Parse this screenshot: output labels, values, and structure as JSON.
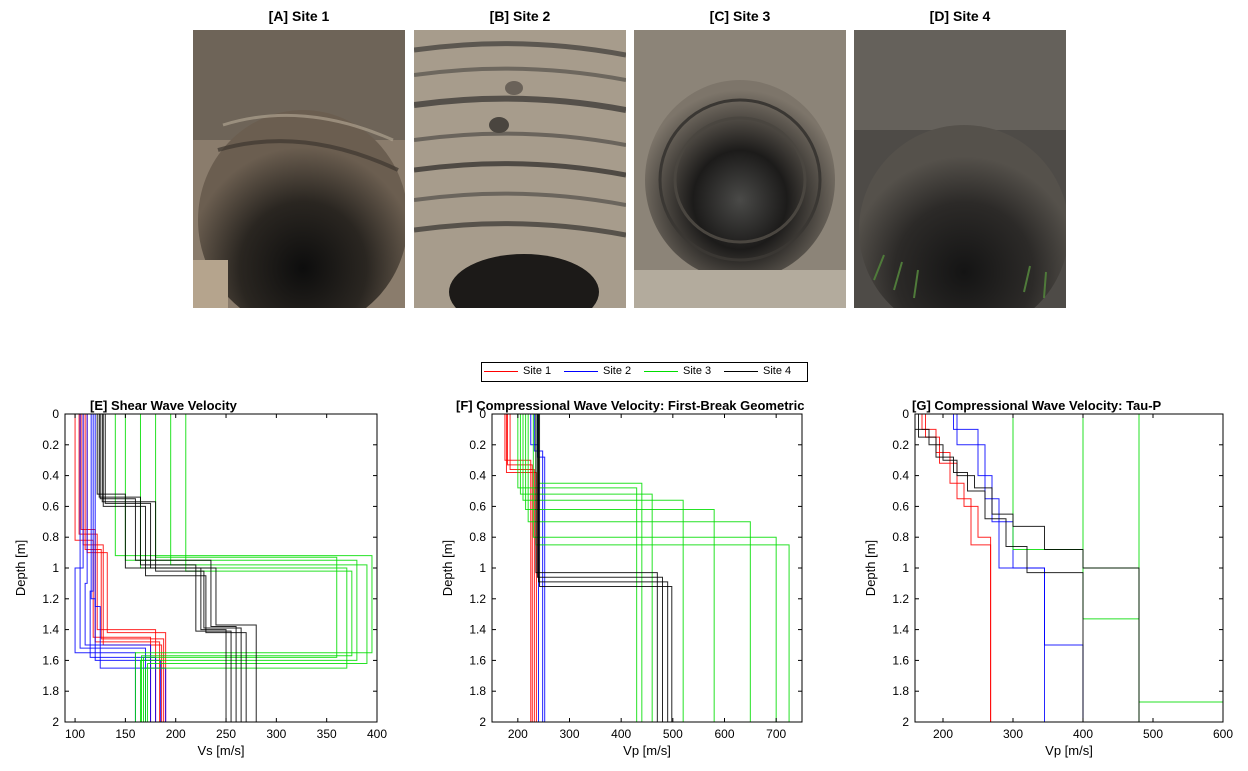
{
  "photos": [
    {
      "label": "[A] Site 1",
      "icon": "soil-pit-photo"
    },
    {
      "label": "[B] Site 2",
      "icon": "layered-soil-photo"
    },
    {
      "label": "[C] Site 3",
      "icon": "soil-pit-photo"
    },
    {
      "label": "[D] Site 4",
      "icon": "soil-pit-photo"
    }
  ],
  "legend": [
    {
      "name": "Site 1",
      "color": "#ff0000"
    },
    {
      "name": "Site 2",
      "color": "#0000ff"
    },
    {
      "name": "Site 3",
      "color": "#00dd00"
    },
    {
      "name": "Site 4",
      "color": "#000000"
    }
  ],
  "chart_data": [
    {
      "type": "line",
      "title": "[E]  Shear Wave Velocity",
      "xlabel": "Vs [m/s]",
      "ylabel": "Depth [m]",
      "xlim": [
        90,
        400
      ],
      "ylim": [
        0,
        2
      ],
      "xticks": [
        100,
        150,
        200,
        250,
        300,
        350,
        400
      ],
      "yticks": [
        0,
        0.2,
        0.4,
        0.6,
        0.8,
        1,
        1.2,
        1.4,
        1.6,
        1.8,
        2
      ],
      "series": [
        {
          "name": "Site 1",
          "profiles": [
            {
              "v": [
                100,
                118,
                175,
                165
              ],
              "d": [
                0.82,
                1.45,
                2
              ]
            },
            {
              "v": [
                104,
                122,
                180,
                170
              ],
              "d": [
                0.78,
                1.4,
                2
              ]
            },
            {
              "v": [
                108,
                128,
                186,
                176
              ],
              "d": [
                0.85,
                1.5,
                2
              ]
            },
            {
              "v": [
                112,
                132,
                190,
                182
              ],
              "d": [
                0.9,
                1.42,
                2
              ]
            },
            {
              "v": [
                106,
                120,
                184,
                160
              ],
              "d": [
                0.75,
                1.48,
                2
              ]
            },
            {
              "v": [
                110,
                126,
                188,
                172
              ],
              "d": [
                0.88,
                1.46,
                2
              ]
            }
          ]
        },
        {
          "name": "Site 2",
          "profiles": [
            {
              "v": [
                108,
                100,
                160,
                135
              ],
              "d": [
                1.0,
                1.55,
                2
              ]
            },
            {
              "v": [
                112,
                110,
                175,
                140
              ],
              "d": [
                1.1,
                1.5,
                2
              ]
            },
            {
              "v": [
                116,
                120,
                185,
                150
              ],
              "d": [
                1.2,
                1.6,
                2
              ]
            },
            {
              "v": [
                120,
                125,
                190,
                148
              ],
              "d": [
                1.25,
                1.65,
                2
              ]
            },
            {
              "v": [
                105,
                105,
                170,
                138
              ],
              "d": [
                1.05,
                1.52,
                2
              ]
            },
            {
              "v": [
                118,
                115,
                180,
                145
              ],
              "d": [
                1.15,
                1.58,
                2
              ]
            }
          ]
        },
        {
          "name": "Site 3",
          "profiles": [
            {
              "v": [
                140,
                395,
                160
              ],
              "d": [
                0.92,
                1.55,
                2
              ]
            },
            {
              "v": [
                150,
                380,
                165
              ],
              "d": [
                0.95,
                1.6,
                2
              ]
            },
            {
              "v": [
                165,
                370,
                170
              ],
              "d": [
                1.0,
                1.65,
                2
              ]
            },
            {
              "v": [
                180,
                360,
                168
              ],
              "d": [
                0.93,
                1.58,
                2
              ]
            },
            {
              "v": [
                195,
                390,
                172
              ],
              "d": [
                0.98,
                1.62,
                2
              ]
            },
            {
              "v": [
                210,
                375,
                166
              ],
              "d": [
                1.02,
                1.57,
                2
              ]
            }
          ]
        },
        {
          "name": "Site 4",
          "profiles": [
            {
              "v": [
                122,
                150,
                225,
                250
              ],
              "d": [
                0.52,
                1.0,
                1.4,
                2
              ]
            },
            {
              "v": [
                125,
                160,
                235,
                260
              ],
              "d": [
                0.55,
                0.95,
                1.38,
                2
              ]
            },
            {
              "v": [
                128,
                170,
                230,
                270
              ],
              "d": [
                0.6,
                1.05,
                1.42,
                2
              ]
            },
            {
              "v": [
                130,
                175,
                240,
                280
              ],
              "d": [
                0.58,
                1.0,
                1.37,
                2
              ]
            },
            {
              "v": [
                124,
                165,
                220,
                255
              ],
              "d": [
                0.54,
                0.98,
                1.41,
                2
              ]
            },
            {
              "v": [
                127,
                180,
                228,
                265
              ],
              "d": [
                0.57,
                1.02,
                1.39,
                2
              ]
            }
          ]
        }
      ]
    },
    {
      "type": "line",
      "title": "[F]  Compressional Wave Velocity: First-Break Geometric",
      "xlabel": "Vp [m/s]",
      "ylabel": "Depth [m]",
      "xlim": [
        150,
        750
      ],
      "ylim": [
        0,
        2
      ],
      "xticks": [
        200,
        300,
        400,
        500,
        600,
        700
      ],
      "yticks": [
        0,
        0.2,
        0.4,
        0.6,
        0.8,
        1,
        1.2,
        1.4,
        1.6,
        1.8,
        2
      ],
      "series": [
        {
          "name": "Site 1",
          "profiles": [
            {
              "v": [
                175,
                225
              ],
              "d": [
                0.3,
                2
              ]
            },
            {
              "v": [
                180,
                228
              ],
              "d": [
                0.33,
                2
              ]
            },
            {
              "v": [
                185,
                232
              ],
              "d": [
                0.36,
                2
              ]
            },
            {
              "v": [
                178,
                236
              ],
              "d": [
                0.38,
                2
              ]
            }
          ]
        },
        {
          "name": "Site 2",
          "profiles": [
            {
              "v": [
                225,
                240
              ],
              "d": [
                0.2,
                2
              ]
            },
            {
              "v": [
                232,
                248
              ],
              "d": [
                0.24,
                2
              ]
            },
            {
              "v": [
                238,
                252
              ],
              "d": [
                0.28,
                2
              ]
            }
          ]
        },
        {
          "name": "Site 3",
          "profiles": [
            {
              "v": [
                200,
                430
              ],
              "d": [
                0.48,
                2
              ]
            },
            {
              "v": [
                205,
                460
              ],
              "d": [
                0.52,
                2
              ]
            },
            {
              "v": [
                210,
                520
              ],
              "d": [
                0.56,
                2
              ]
            },
            {
              "v": [
                215,
                580
              ],
              "d": [
                0.62,
                2
              ]
            },
            {
              "v": [
                220,
                650
              ],
              "d": [
                0.7,
                2
              ]
            },
            {
              "v": [
                230,
                700
              ],
              "d": [
                0.8,
                2
              ]
            },
            {
              "v": [
                235,
                725
              ],
              "d": [
                0.85,
                2
              ]
            },
            {
              "v": [
                240,
                440
              ],
              "d": [
                0.45,
                2
              ]
            }
          ]
        },
        {
          "name": "Site 4",
          "profiles": [
            {
              "v": [
                235,
                470
              ],
              "d": [
                1.03,
                2
              ]
            },
            {
              "v": [
                238,
                480
              ],
              "d": [
                1.06,
                2
              ]
            },
            {
              "v": [
                240,
                490
              ],
              "d": [
                1.09,
                2
              ]
            },
            {
              "v": [
                242,
                498
              ],
              "d": [
                1.12,
                2
              ]
            }
          ]
        }
      ]
    },
    {
      "type": "line",
      "title": "[G]  Compressional Wave Velocity: Tau-P",
      "xlabel": "Vp [m/s]",
      "ylabel": "Depth [m]",
      "xlim": [
        160,
        600
      ],
      "ylim": [
        0,
        2
      ],
      "xticks": [
        200,
        300,
        400,
        500,
        600
      ],
      "yticks": [
        0,
        0.2,
        0.4,
        0.6,
        0.8,
        1,
        1.2,
        1.4,
        1.6,
        1.8,
        2
      ],
      "series": [
        {
          "name": "Site 1",
          "profiles": [
            {
              "v": [
                170,
                190,
                210,
                230,
                250,
                268
              ],
              "d": [
                0.1,
                0.25,
                0.45,
                0.6,
                0.8,
                2
              ]
            },
            {
              "v": [
                175,
                195,
                220,
                240,
                268
              ],
              "d": [
                0.15,
                0.32,
                0.55,
                0.85,
                2
              ]
            }
          ]
        },
        {
          "name": "Site 2",
          "profiles": [
            {
              "v": [
                215,
                250,
                270,
                300,
                345
              ],
              "d": [
                0.1,
                0.4,
                0.7,
                1.0,
                2
              ]
            },
            {
              "v": [
                220,
                260,
                280,
                345,
                400
              ],
              "d": [
                0.2,
                0.55,
                1.0,
                1.5,
                2
              ]
            }
          ]
        },
        {
          "name": "Site 3",
          "profiles": [
            {
              "v": [
                300,
                400,
                480
              ],
              "d": [
                0.88,
                1.0,
                2
              ]
            },
            {
              "v": [
                400,
                480
              ],
              "d": [
                1.33,
                2
              ]
            },
            {
              "v": [
                480,
                600
              ],
              "d": [
                1.87,
                2
              ]
            }
          ]
        },
        {
          "name": "Site 4",
          "profiles": [
            {
              "v": [
                160,
                180,
                200,
                220,
                245,
                270,
                300,
                345,
                400,
                480
              ],
              "d": [
                0.1,
                0.2,
                0.3,
                0.4,
                0.48,
                0.65,
                0.73,
                0.88,
                1.0,
                2
              ]
            },
            {
              "v": [
                165,
                190,
                215,
                235,
                260,
                290,
                320,
                400
              ],
              "d": [
                0.15,
                0.28,
                0.38,
                0.5,
                0.68,
                0.86,
                1.03,
                2
              ]
            }
          ]
        }
      ]
    }
  ]
}
